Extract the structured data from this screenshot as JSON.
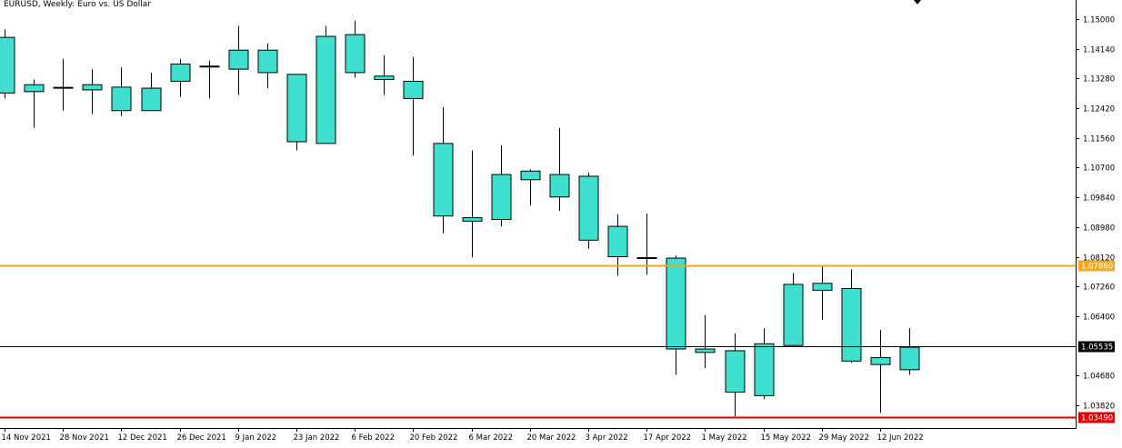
{
  "header": {
    "title": "EURUSD, Weekly:  Euro vs. US Dollar"
  },
  "colors": {
    "candle_fill": "#40e0d0",
    "candle_stroke": "#000000",
    "grid_border": "#000000",
    "orange_line": "#f5a623",
    "red_line": "#e00000",
    "current_line": "#000000",
    "orange_badge": "#f5a623",
    "red_badge": "#e00000",
    "current_badge_bg": "#000000",
    "current_badge_text": "#ffffff"
  },
  "chart_data": {
    "type": "candlestick",
    "symbol": "EURUSD",
    "timeframe": "Weekly",
    "ylim": [
      1.032,
      1.1545
    ],
    "y_ticks": [
      "1.15000",
      "1.14140",
      "1.13280",
      "1.12420",
      "1.11560",
      "1.10700",
      "1.09840",
      "1.08980",
      "1.08120",
      "1.07260",
      "1.06400",
      "1.05535",
      "1.04680",
      "1.03820",
      "1.03490"
    ],
    "y_tick_values": [
      1.15,
      1.1414,
      1.1328,
      1.1242,
      1.1156,
      1.107,
      1.0984,
      1.0898,
      1.0812,
      1.0726,
      1.064,
      1.0468,
      1.0382
    ],
    "x_tick_labels": [
      "14 Nov 2021",
      "28 Nov 2021",
      "12 Dec 2021",
      "26 Dec 2021",
      "9 Jan 2022",
      "23 Jan 2022",
      "6 Feb 2022",
      "20 Feb 2022",
      "6 Mar 2022",
      "20 Mar 2022",
      "3 Apr 2022",
      "17 Apr 2022",
      "1 May 2022",
      "15 May 2022",
      "29 May 2022",
      "12 Jun 2022"
    ],
    "x_tick_bar_index": [
      0,
      2,
      4,
      6,
      8,
      10,
      12,
      14,
      16,
      18,
      20,
      22,
      24,
      26,
      28,
      30
    ],
    "candles": [
      {
        "week": "14 Nov 2021",
        "open": 1.1447,
        "high": 1.147,
        "low": 1.127,
        "close": 1.1286
      },
      {
        "week": "21 Nov 2021",
        "open": 1.129,
        "high": 1.1325,
        "low": 1.1185,
        "close": 1.131
      },
      {
        "week": "28 Nov 2021",
        "open": 1.13,
        "high": 1.1385,
        "low": 1.1235,
        "close": 1.1302
      },
      {
        "week": "5 Dec 2021",
        "open": 1.1295,
        "high": 1.1355,
        "low": 1.1225,
        "close": 1.131
      },
      {
        "week": "12 Dec 2021",
        "open": 1.1303,
        "high": 1.136,
        "low": 1.122,
        "close": 1.1235
      },
      {
        "week": "19 Dec 2021",
        "open": 1.1235,
        "high": 1.1345,
        "low": 1.1235,
        "close": 1.13
      },
      {
        "week": "26 Dec 2021",
        "open": 1.132,
        "high": 1.1385,
        "low": 1.1275,
        "close": 1.137
      },
      {
        "week": "2 Jan 2022",
        "open": 1.136,
        "high": 1.138,
        "low": 1.127,
        "close": 1.1365
      },
      {
        "week": "9 Jan 2022",
        "open": 1.1355,
        "high": 1.148,
        "low": 1.128,
        "close": 1.141
      },
      {
        "week": "16 Jan 2022",
        "open": 1.141,
        "high": 1.143,
        "low": 1.13,
        "close": 1.1345
      },
      {
        "week": "23 Jan 2022",
        "open": 1.134,
        "high": 1.134,
        "low": 1.112,
        "close": 1.1145
      },
      {
        "week": "30 Jan 2022",
        "open": 1.114,
        "high": 1.148,
        "low": 1.114,
        "close": 1.145
      },
      {
        "week": "6 Feb 2022",
        "open": 1.1455,
        "high": 1.1495,
        "low": 1.133,
        "close": 1.1345
      },
      {
        "week": "13 Feb 2022",
        "open": 1.1325,
        "high": 1.1395,
        "low": 1.128,
        "close": 1.1335
      },
      {
        "week": "20 Feb 2022",
        "open": 1.132,
        "high": 1.139,
        "low": 1.1105,
        "close": 1.127
      },
      {
        "week": "27 Feb 2022",
        "open": 1.114,
        "high": 1.1245,
        "low": 1.088,
        "close": 1.093
      },
      {
        "week": "6 Mar 2022",
        "open": 1.0925,
        "high": 1.112,
        "low": 1.081,
        "close": 1.0915
      },
      {
        "week": "13 Mar 2022",
        "open": 1.092,
        "high": 1.1135,
        "low": 1.09,
        "close": 1.105
      },
      {
        "week": "20 Mar 2022",
        "open": 1.1035,
        "high": 1.1065,
        "low": 1.096,
        "close": 1.106
      },
      {
        "week": "27 Mar 2022",
        "open": 1.105,
        "high": 1.1185,
        "low": 1.0945,
        "close": 1.0985
      },
      {
        "week": "3 Apr 2022",
        "open": 1.1045,
        "high": 1.1055,
        "low": 1.0835,
        "close": 1.086
      },
      {
        "week": "10 Apr 2022",
        "open": 1.0812,
        "high": 1.0935,
        "low": 1.0757,
        "close": 1.09
      },
      {
        "week": "17 Apr 2022",
        "open": 1.0808,
        "high": 1.0937,
        "low": 1.076,
        "close": 1.0808
      },
      {
        "week": "24 Apr 2022",
        "open": 1.0808,
        "high": 1.0815,
        "low": 1.047,
        "close": 1.0545
      },
      {
        "week": "1 May 2022",
        "open": 1.0535,
        "high": 1.0643,
        "low": 1.049,
        "close": 1.0545
      },
      {
        "week": "8 May 2022",
        "open": 1.054,
        "high": 1.059,
        "low": 1.035,
        "close": 1.042
      },
      {
        "week": "15 May 2022",
        "open": 1.041,
        "high": 1.0605,
        "low": 1.04,
        "close": 1.056
      },
      {
        "week": "22 May 2022",
        "open": 1.0555,
        "high": 1.0765,
        "low": 1.055,
        "close": 1.0732
      },
      {
        "week": "29 May 2022",
        "open": 1.0715,
        "high": 1.0785,
        "low": 1.063,
        "close": 1.0735
      },
      {
        "week": "5 Jun 2022",
        "open": 1.072,
        "high": 1.0775,
        "low": 1.0505,
        "close": 1.051
      },
      {
        "week": "12 Jun 2022",
        "open": 1.05,
        "high": 1.06,
        "low": 1.036,
        "close": 1.052
      },
      {
        "week": "19 Jun 2022",
        "open": 1.0485,
        "high": 1.0605,
        "low": 1.047,
        "close": 1.055
      }
    ],
    "horizontal_lines": [
      {
        "value": 1.0786,
        "label": "1.07860",
        "color": "orange"
      },
      {
        "value": 1.05535,
        "label": "1.05535",
        "color": "current"
      },
      {
        "value": 1.0349,
        "label": "1.03490",
        "color": "red"
      }
    ]
  }
}
